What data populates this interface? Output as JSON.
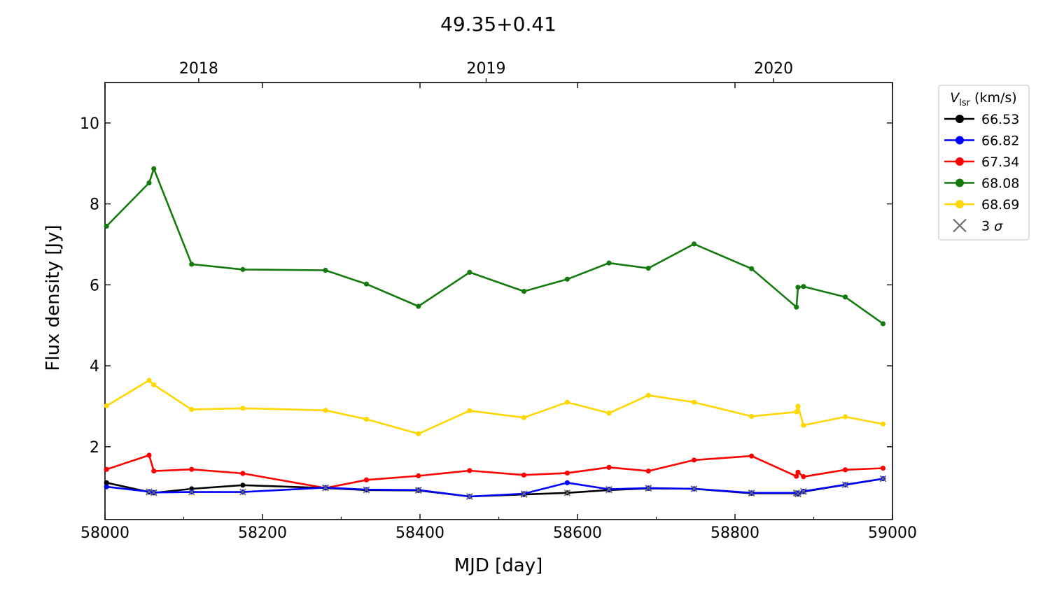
{
  "chart_data": {
    "type": "line",
    "title": "49.35+0.41",
    "xlabel": "MJD [day]",
    "ylabel": "Flux density [Jy]",
    "top_axis_labels": [
      "2018",
      "2019",
      "2020"
    ],
    "top_axis_mjd": [
      58119,
      58484,
      58849
    ],
    "xlim": [
      58000,
      59000
    ],
    "ylim": [
      0.2,
      11.0
    ],
    "x_ticks": [
      58000,
      58200,
      58400,
      58600,
      58800,
      59000
    ],
    "x_minor_ticks": [
      58100,
      58300,
      58500,
      58700,
      58900
    ],
    "y_ticks": [
      2,
      4,
      6,
      8,
      10
    ],
    "y_tick_labels": [
      "2",
      "4",
      "6",
      "8",
      "10"
    ],
    "grid": false,
    "legend": {
      "title_symbol": "V",
      "title_subscript": "lsr",
      "title_unit": "(km/s)",
      "placement": "outside-right-top",
      "sigma_label_prefix": "3 ",
      "sigma_label_symbol": "σ",
      "sigma_color": "#6b6b6b"
    },
    "series": [
      {
        "name": "66.53",
        "color": "#000000",
        "x": [
          58002,
          58056,
          58062,
          58110,
          58175,
          58280,
          58332,
          58398,
          58463,
          58532,
          58587,
          58640,
          58690,
          58748,
          58821,
          58878,
          58880,
          58887,
          58940,
          58988
        ],
        "y": [
          1.11,
          0.88,
          0.86,
          0.96,
          1.05,
          0.98,
          0.93,
          0.92,
          0.77,
          0.82,
          0.86,
          0.93,
          0.97,
          0.96,
          0.85,
          0.85,
          0.83,
          0.89,
          1.06,
          1.21
        ],
        "sigma": [
          false,
          true,
          true,
          false,
          false,
          false,
          true,
          true,
          true,
          true,
          true,
          true,
          true,
          true,
          true,
          true,
          true,
          true,
          true,
          true
        ]
      },
      {
        "name": "66.82",
        "color": "#0000ff",
        "x": [
          58002,
          58056,
          58062,
          58110,
          58175,
          58280,
          58332,
          58398,
          58463,
          58532,
          58587,
          58640,
          58690,
          58748,
          58821,
          58878,
          58880,
          58887,
          58940,
          58988
        ],
        "y": [
          1.01,
          0.89,
          0.87,
          0.88,
          0.88,
          0.99,
          0.94,
          0.93,
          0.77,
          0.84,
          1.11,
          0.95,
          0.98,
          0.96,
          0.86,
          0.86,
          0.84,
          0.9,
          1.06,
          1.21
        ],
        "sigma": [
          false,
          true,
          true,
          true,
          true,
          true,
          true,
          true,
          true,
          true,
          false,
          true,
          true,
          true,
          true,
          true,
          true,
          true,
          true,
          true
        ]
      },
      {
        "name": "67.34",
        "color": "#ff0000",
        "x": [
          58002,
          58056,
          58062,
          58110,
          58175,
          58280,
          58332,
          58398,
          58463,
          58532,
          58587,
          58640,
          58690,
          58748,
          58821,
          58878,
          58880,
          58887,
          58940,
          58988
        ],
        "y": [
          1.44,
          1.79,
          1.4,
          1.44,
          1.34,
          0.98,
          1.18,
          1.28,
          1.41,
          1.3,
          1.35,
          1.49,
          1.4,
          1.67,
          1.77,
          1.27,
          1.37,
          1.26,
          1.43,
          1.47
        ],
        "sigma": [
          false,
          false,
          false,
          false,
          false,
          true,
          false,
          false,
          false,
          false,
          false,
          false,
          false,
          false,
          false,
          false,
          false,
          false,
          false,
          false
        ]
      },
      {
        "name": "68.08",
        "color": "#157a0e",
        "x": [
          58002,
          58056,
          58062,
          58110,
          58175,
          58280,
          58332,
          58398,
          58463,
          58532,
          58587,
          58640,
          58690,
          58748,
          58821,
          58878,
          58880,
          58887,
          58940,
          58988
        ],
        "y": [
          7.45,
          8.52,
          8.87,
          6.51,
          6.38,
          6.36,
          6.02,
          5.47,
          6.31,
          5.84,
          6.14,
          6.54,
          6.41,
          7.01,
          6.4,
          5.45,
          5.94,
          5.96,
          5.7,
          5.04
        ],
        "sigma": [
          false,
          false,
          false,
          false,
          false,
          false,
          false,
          false,
          false,
          false,
          false,
          false,
          false,
          false,
          false,
          false,
          false,
          false,
          false,
          false
        ]
      },
      {
        "name": "68.69",
        "color": "#ffd700",
        "x": [
          58002,
          58056,
          58062,
          58110,
          58175,
          58280,
          58332,
          58398,
          58463,
          58532,
          58587,
          58640,
          58690,
          58748,
          58821,
          58878,
          58880,
          58887,
          58940,
          58988
        ],
        "y": [
          3.01,
          3.64,
          3.53,
          2.92,
          2.95,
          2.9,
          2.68,
          2.32,
          2.89,
          2.72,
          3.1,
          2.83,
          3.27,
          3.1,
          2.75,
          2.86,
          3.0,
          2.53,
          2.74,
          2.56
        ],
        "sigma": [
          false,
          false,
          false,
          false,
          false,
          false,
          false,
          false,
          false,
          false,
          false,
          false,
          false,
          false,
          false,
          false,
          false,
          false,
          false,
          false
        ]
      }
    ]
  }
}
